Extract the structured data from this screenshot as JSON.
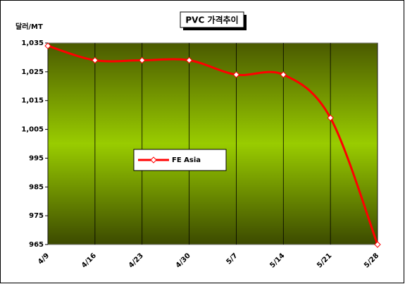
{
  "chart_data": {
    "type": "line",
    "title": "PVC 가격추이",
    "y_axis_label": "달러/MT",
    "categories": [
      "4/9",
      "4/16",
      "4/23",
      "4/30",
      "5/7",
      "5/14",
      "5/21",
      "5/28"
    ],
    "series": [
      {
        "name": "FE Asia",
        "color": "#ff0000",
        "values": [
          1034,
          1029,
          1029,
          1029,
          1024,
          1024,
          1009,
          965
        ]
      }
    ],
    "ylim": [
      965,
      1035
    ],
    "yticks": [
      965,
      975,
      985,
      995,
      {
        "value": 1005,
        "label": "1,005"
      },
      {
        "value": 1015,
        "label": "1,015"
      },
      {
        "value": 1025,
        "label": "1,025"
      },
      {
        "value": 1035,
        "label": "1,035"
      }
    ],
    "grid": true,
    "smooth": true
  }
}
